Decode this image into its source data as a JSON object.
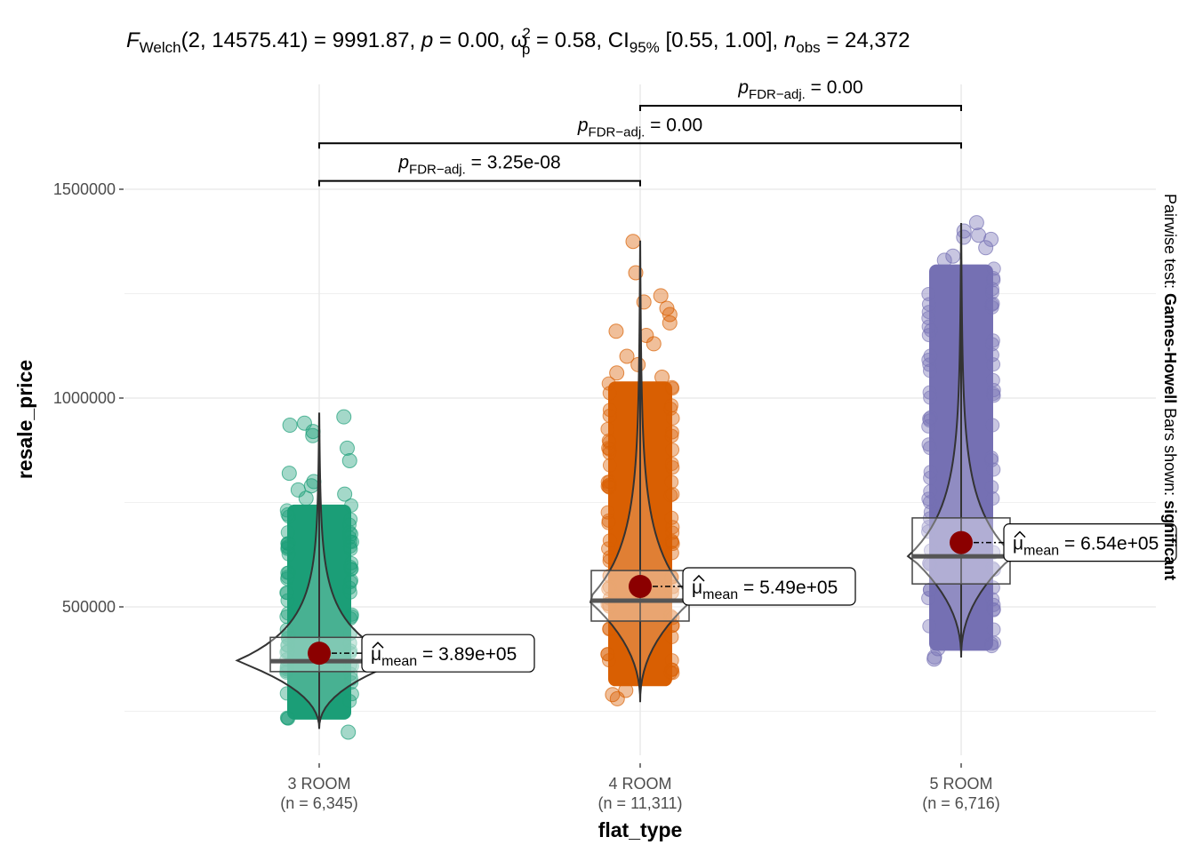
{
  "chart_data": {
    "type": "violin-box-scatter",
    "title": {
      "stat_name": "F",
      "stat_sub": "Welch",
      "df": "(2, 14575.41)",
      "stat_value": "9991.87",
      "p_label": "p",
      "p_value": "0.00",
      "effect_name": "ω",
      "effect_sup": "2",
      "effect_sub": "p",
      "effect_value": "0.58",
      "ci_label": "CI",
      "ci_sub": "95%",
      "ci_value": "[0.55, 1.00]",
      "n_label": "n",
      "n_sub": "obs",
      "n_value": "24,372"
    },
    "xlabel": "flat_type",
    "ylabel": "resale_price",
    "ylim": [
      144000,
      1750000
    ],
    "yticks": [
      500000,
      1000000,
      1500000
    ],
    "ytick_labels": [
      "500000",
      "1000000",
      "1500000"
    ],
    "minor_gridlines": [
      250000,
      750000,
      1250000
    ],
    "grid": true,
    "caption": {
      "prefix": "Pairwise test: ",
      "test": "Games-Howell",
      "middle": " Bars shown: ",
      "shown": "significant"
    },
    "groups": [
      {
        "name": "3 ROOM",
        "n_label": "(n = 6,345)",
        "color": "#1b9e77",
        "mean": 389000,
        "mean_label": "3.89e+05",
        "median": 370000,
        "q1": 345000,
        "q3": 427000,
        "whisker_low": 208000,
        "whisker_high": 963000,
        "dense_low": 230000,
        "dense_high": 745000,
        "outliers": [
          955000,
          940000,
          935000,
          920000,
          910000,
          880000,
          850000,
          820000,
          800000,
          790000,
          780000,
          770000,
          760000,
          200000
        ]
      },
      {
        "name": "4 ROOM",
        "n_label": "(n = 11,311)",
        "color": "#d95f02",
        "mean": 549000,
        "mean_label": "5.49e+05",
        "median": 515000,
        "q1": 466000,
        "q3": 587000,
        "whisker_low": 272000,
        "whisker_high": 1375000,
        "dense_low": 310000,
        "dense_high": 1040000,
        "outliers": [
          1375000,
          1300000,
          1245000,
          1230000,
          1215000,
          1200000,
          1180000,
          1160000,
          1150000,
          1130000,
          1100000,
          1080000,
          1060000,
          1050000,
          300000,
          290000,
          280000
        ]
      },
      {
        "name": "5 ROOM",
        "n_label": "(n = 6,716)",
        "color": "#7570b3",
        "mean": 654000,
        "mean_label": "6.54e+05",
        "median": 621000,
        "q1": 555000,
        "q3": 713000,
        "whisker_low": 379000,
        "whisker_high": 1417000,
        "dense_low": 395000,
        "dense_high": 1320000,
        "outliers": [
          1420000,
          1400000,
          1390000,
          1385000,
          1380000,
          1360000,
          1340000,
          1330000,
          380000,
          375000,
          400000
        ]
      }
    ],
    "mean_label_prefix": "μ",
    "mean_label_sub": "mean",
    "pairwise": [
      {
        "from": "3 ROOM",
        "to": "4 ROOM",
        "y": 1520000,
        "label_prefix": "p",
        "label_sub": "FDR−adj.",
        "label_value": "3.25e-08"
      },
      {
        "from": "3 ROOM",
        "to": "5 ROOM",
        "y": 1610000,
        "label_prefix": "p",
        "label_sub": "FDR−adj.",
        "label_value": "0.00"
      },
      {
        "from": "4 ROOM",
        "to": "5 ROOM",
        "y": 1700000,
        "label_prefix": "p",
        "label_sub": "FDR−adj.",
        "label_value": "0.00"
      }
    ]
  }
}
